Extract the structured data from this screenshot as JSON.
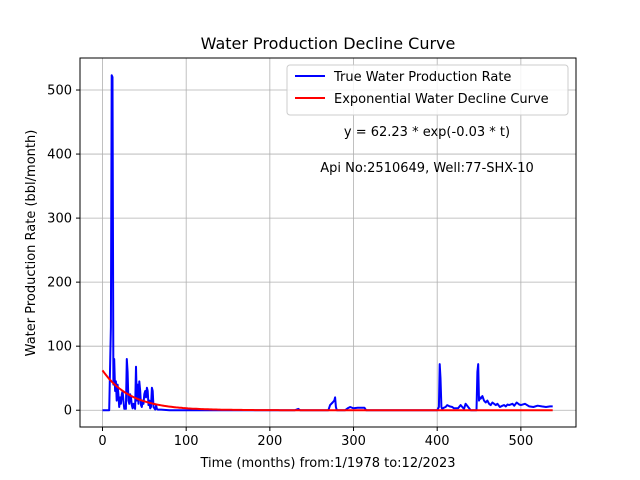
{
  "chart_data": {
    "type": "line",
    "title": "Water Production Decline Curve",
    "xlabel": "Time (months) from:1/1978 to:12/2023",
    "ylabel": "Water Production Rate (bbl/month)",
    "xlim": [
      -26.9,
      565.9
    ],
    "ylim": [
      -26.2,
      550.0
    ],
    "xticks": [
      0,
      100,
      200,
      300,
      400,
      500
    ],
    "yticks": [
      0,
      100,
      200,
      300,
      400,
      500
    ],
    "grid": true,
    "legend_position": "top-right",
    "annotations": [
      "y = 62.23 * exp(-0.03 * t)",
      "Api No:2510649, Well:77-SHX-10"
    ],
    "series": [
      {
        "name": "True Water Production Rate",
        "color": "#0000ff",
        "x": [
          0,
          8,
          10,
          11,
          12,
          13,
          14,
          15,
          16,
          17,
          18,
          19,
          20,
          21,
          22,
          23,
          24,
          25,
          26,
          27,
          28,
          29,
          30,
          31,
          32,
          33,
          34,
          35,
          36,
          37,
          38,
          39,
          40,
          41,
          42,
          43,
          44,
          45,
          46,
          47,
          48,
          49,
          50,
          51,
          52,
          53,
          54,
          55,
          56,
          57,
          58,
          59,
          60,
          61,
          62,
          63,
          64,
          65,
          66,
          70,
          80,
          100,
          150,
          200,
          230,
          234,
          236,
          240,
          250,
          270,
          272,
          275,
          277,
          278,
          279,
          280,
          283,
          285,
          290,
          293,
          296,
          300,
          305,
          310,
          313,
          315,
          320,
          350,
          380,
          400,
          402,
          403,
          404,
          405,
          406,
          408,
          410,
          412,
          415,
          418,
          420,
          425,
          428,
          430,
          432,
          434,
          440,
          445,
          447,
          448,
          449,
          450,
          451,
          452,
          454,
          456,
          458,
          460,
          462,
          464,
          466,
          468,
          470,
          472,
          475,
          478,
          480,
          482,
          484,
          486,
          490,
          492,
          495,
          498,
          500,
          505,
          510,
          515,
          520,
          525,
          530,
          535,
          538
        ],
        "y": [
          0,
          0,
          130,
          523,
          520,
          40,
          80,
          30,
          45,
          15,
          40,
          25,
          5,
          20,
          10,
          25,
          30,
          15,
          2,
          5,
          2,
          80,
          60,
          15,
          10,
          25,
          20,
          8,
          3,
          10,
          5,
          2,
          68,
          15,
          40,
          10,
          45,
          30,
          8,
          5,
          15,
          10,
          25,
          30,
          20,
          35,
          30,
          8,
          15,
          3,
          5,
          35,
          30,
          5,
          3,
          1,
          8,
          2,
          1,
          1,
          0,
          0,
          0,
          0,
          0,
          2,
          0,
          0,
          0,
          0,
          8,
          12,
          15,
          20,
          5,
          0,
          0,
          0,
          0,
          3,
          5,
          3,
          4,
          4,
          4,
          0,
          0,
          0,
          0,
          0,
          5,
          72,
          50,
          5,
          2,
          4,
          5,
          8,
          6,
          5,
          3,
          3,
          8,
          5,
          2,
          10,
          0,
          0,
          0,
          60,
          72,
          15,
          20,
          18,
          22,
          15,
          12,
          15,
          10,
          8,
          12,
          10,
          8,
          10,
          5,
          7,
          8,
          6,
          9,
          8,
          10,
          7,
          12,
          9,
          8,
          10,
          6,
          5,
          7,
          6,
          5,
          6,
          6
        ]
      },
      {
        "name": "Exponential Water Decline Curve",
        "color": "#ff0000",
        "fit": {
          "a": 62.23,
          "b": 0.03
        },
        "x_range": [
          0,
          538
        ]
      }
    ]
  }
}
